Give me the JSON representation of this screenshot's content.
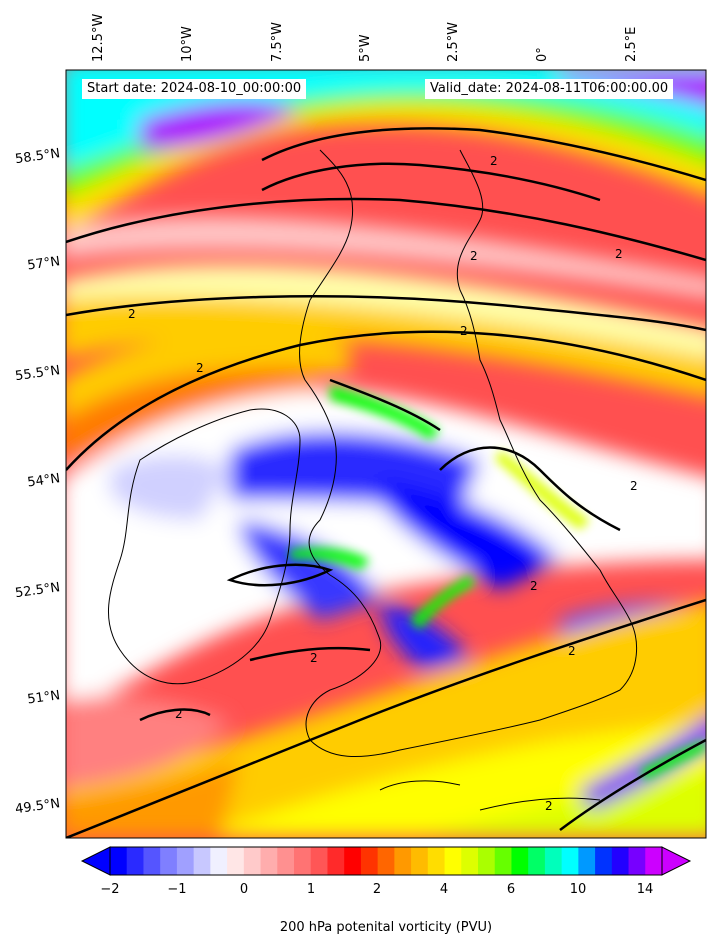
{
  "header": {
    "start_date": "Start date: 2024-08-10_00:00:00",
    "valid_date": "Valid_date: 2024-08-11T06:00:00.00"
  },
  "map": {
    "longitude_labels": [
      "12.5°W",
      "10°W",
      "7.5°W",
      "5°W",
      "2.5°W",
      "0°",
      "2.5°E"
    ],
    "latitude_labels": [
      "58.5°N",
      "57°N",
      "55.5°N",
      "54°N",
      "52.5°N",
      "51°N",
      "49.5°N"
    ],
    "contour_label": "2"
  },
  "colorbar": {
    "title": "200 hPa potenital vorticity (PVU)",
    "tick_labels": [
      "−2",
      "−1",
      "0",
      "1",
      "2",
      "4",
      "6",
      "10",
      "14"
    ],
    "colors": [
      "#0000ff",
      "#2a2aff",
      "#5555ff",
      "#7f7fff",
      "#a0a0ff",
      "#c8c8ff",
      "#f0f0ff",
      "#ffe6e6",
      "#ffcaca",
      "#ffadad",
      "#ff9090",
      "#ff7373",
      "#ff5656",
      "#ff2a2a",
      "#ff0000",
      "#ff3300",
      "#ff6600",
      "#ff9900",
      "#ffbb00",
      "#ffdd00",
      "#ffff00",
      "#ddff00",
      "#aaff00",
      "#66ff00",
      "#00ff00",
      "#00ff66",
      "#00ffbb",
      "#00ffff",
      "#0099ff",
      "#0033ff",
      "#2200ff",
      "#7700ff",
      "#cc00ff"
    ]
  }
}
